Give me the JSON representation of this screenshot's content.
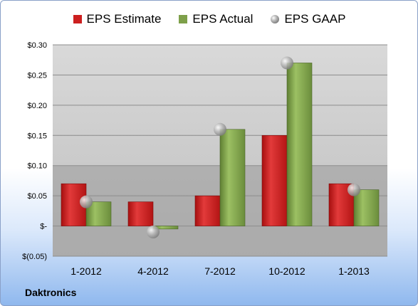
{
  "footer": {
    "company": "Daktronics"
  },
  "legend": [
    {
      "label": "EPS Estimate",
      "color": "#cc1f1f",
      "marker": "bar"
    },
    {
      "label": "EPS Actual",
      "color": "#7ea04a",
      "marker": "bar"
    },
    {
      "label": "EPS GAAP",
      "color": "#a9a9a9",
      "marker": "sphere"
    }
  ],
  "chart_data": {
    "type": "bar",
    "categories": [
      "1-2012",
      "4-2012",
      "7-2012",
      "10-2012",
      "1-2013"
    ],
    "series": [
      {
        "name": "EPS Estimate",
        "type": "bar",
        "values": [
          0.07,
          0.04,
          0.05,
          0.15,
          0.07
        ],
        "color": "#cc1f1f"
      },
      {
        "name": "EPS Actual",
        "type": "bar",
        "values": [
          0.04,
          -0.005,
          0.16,
          0.27,
          0.06
        ],
        "color": "#7ea04a"
      },
      {
        "name": "EPS GAAP",
        "type": "scatter",
        "values": [
          0.04,
          -0.01,
          0.16,
          0.27,
          0.06
        ],
        "color": "#a9a9a9"
      }
    ],
    "ylim": [
      -0.05,
      0.3
    ],
    "yticks": [
      -0.05,
      0,
      0.05,
      0.1,
      0.15,
      0.2,
      0.25,
      0.3
    ],
    "ytick_labels": [
      "$(0.05)",
      "$-",
      "$0.05",
      "$0.10",
      "$0.15",
      "$0.20",
      "$0.25",
      "$0.30"
    ],
    "grid": true,
    "legend_position": "top"
  }
}
